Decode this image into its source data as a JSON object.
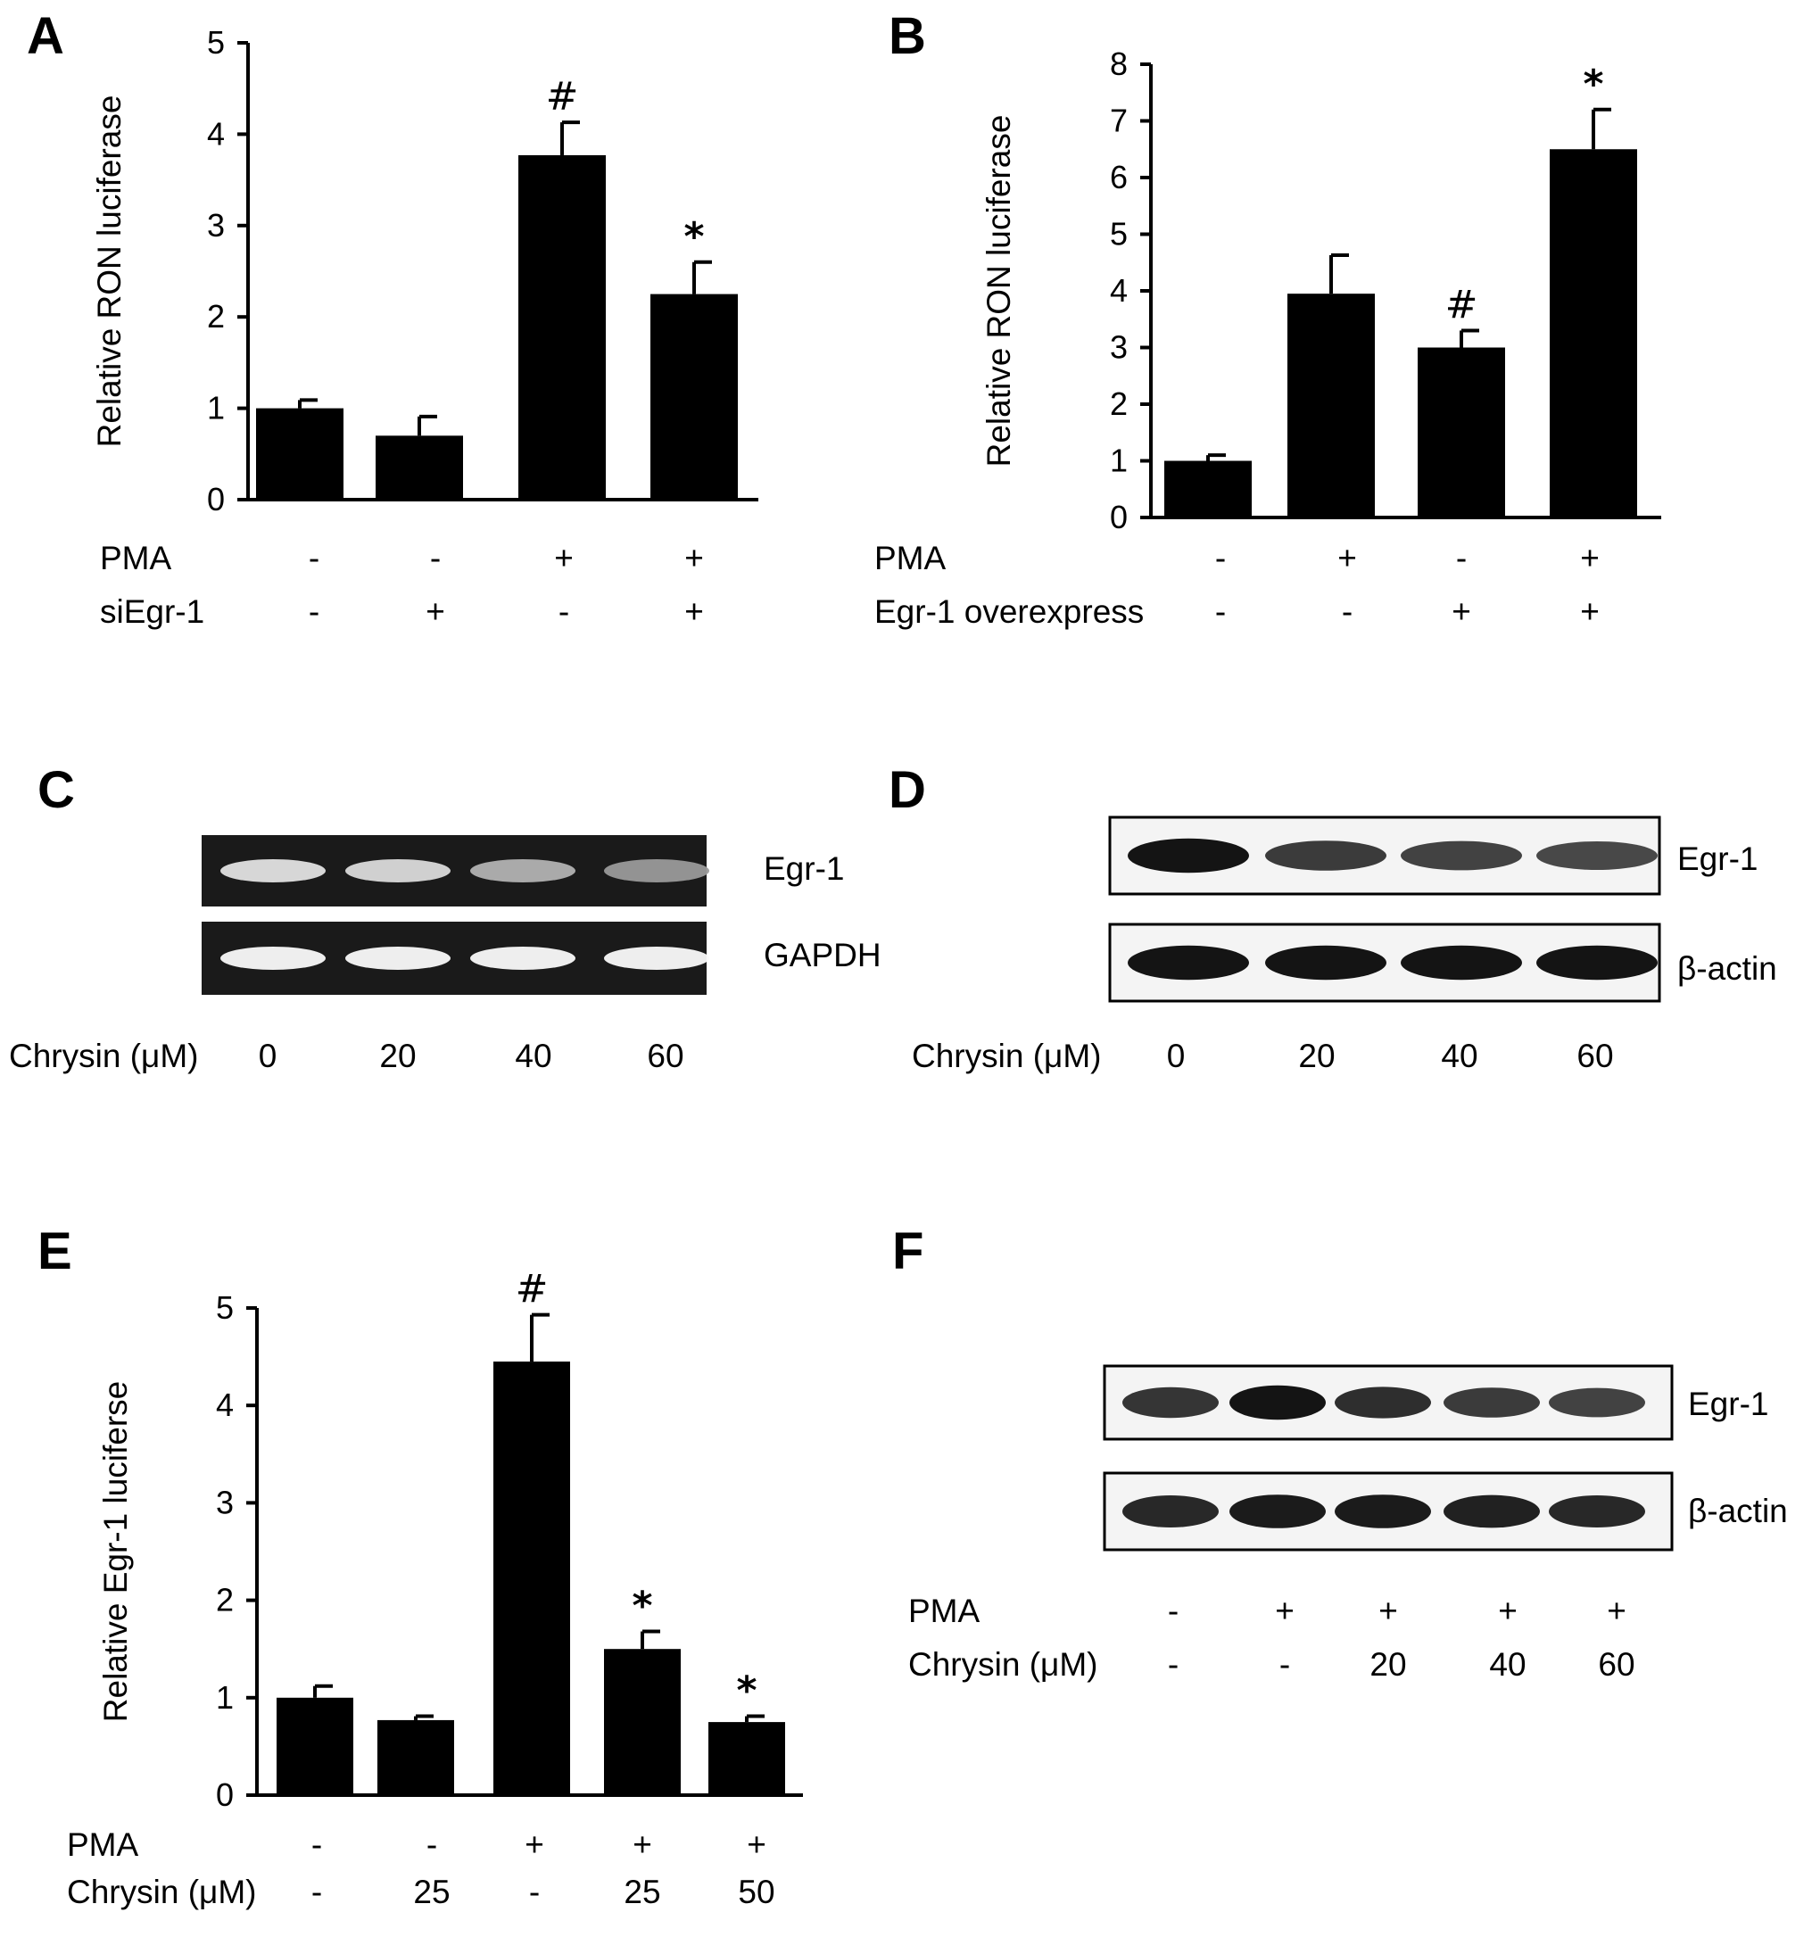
{
  "chart_data": [
    {
      "panel": "A",
      "type": "bar",
      "ylabel": "Relative RON luciferase",
      "ylim": [
        0,
        5
      ],
      "yticks": [
        "0",
        "1",
        "2",
        "3",
        "4",
        "5"
      ],
      "values": [
        1.0,
        0.7,
        3.77,
        2.25
      ],
      "errors": [
        0.09,
        0.21,
        0.36,
        0.35
      ],
      "annotations": [
        "",
        "",
        "#",
        "*"
      ],
      "conditions": [
        {
          "label": "PMA",
          "marks": [
            "-",
            "-",
            "+",
            "+"
          ]
        },
        {
          "label": "siEgr-1",
          "marks": [
            "-",
            "+",
            "-",
            "+"
          ]
        }
      ]
    },
    {
      "panel": "B",
      "type": "bar",
      "ylabel": "Relative RON luciferase",
      "ylim": [
        0,
        8
      ],
      "yticks": [
        "0",
        "1",
        "2",
        "3",
        "4",
        "5",
        "6",
        "7",
        "8"
      ],
      "values": [
        1.0,
        3.95,
        3.0,
        6.5
      ],
      "errors": [
        0.1,
        0.68,
        0.3,
        0.7
      ],
      "annotations": [
        "",
        "",
        "#",
        "*"
      ],
      "conditions": [
        {
          "label": "PMA",
          "marks": [
            "-",
            "+",
            "-",
            "+"
          ]
        },
        {
          "label": "Egr-1 overexpress",
          "marks": [
            "-",
            "-",
            "+",
            "+"
          ]
        }
      ]
    },
    {
      "panel": "E",
      "type": "bar",
      "ylabel": "Relative Egr-1 luciferse",
      "ylim": [
        0,
        5
      ],
      "yticks": [
        "0",
        "1",
        "2",
        "3",
        "4",
        "5"
      ],
      "values": [
        1.0,
        0.77,
        4.45,
        1.5,
        0.75
      ],
      "errors": [
        0.12,
        0.04,
        0.48,
        0.18,
        0.06
      ],
      "annotations": [
        "",
        "",
        "#",
        "*",
        "*"
      ],
      "conditions": [
        {
          "label": "PMA",
          "marks": [
            "-",
            "-",
            "+",
            "+",
            "+"
          ]
        },
        {
          "label": "Chrysin (μM)",
          "marks": [
            "-",
            "25",
            "-",
            "25",
            "50"
          ]
        }
      ]
    }
  ],
  "blots": [
    {
      "panel": "C",
      "style": "gel",
      "bands": [
        "Egr-1",
        "GAPDH"
      ],
      "intensity": [
        [
          0.85,
          0.8,
          0.55,
          0.4
        ],
        [
          1.0,
          1.0,
          1.0,
          1.0
        ]
      ],
      "lane_title": "Chrysin (μM)",
      "lanes": [
        "0",
        "20",
        "40",
        "60"
      ]
    },
    {
      "panel": "D",
      "style": "western",
      "bands": [
        "Egr-1",
        "β-actin"
      ],
      "intensity": [
        [
          1.0,
          0.7,
          0.65,
          0.6
        ],
        [
          1.0,
          1.0,
          1.0,
          1.0
        ]
      ],
      "lane_title": "Chrysin (μM)",
      "lanes": [
        "0",
        "20",
        "40",
        "60"
      ]
    },
    {
      "panel": "F",
      "style": "western",
      "bands": [
        "Egr-1",
        "β-actin"
      ],
      "intensity": [
        [
          0.75,
          1.0,
          0.8,
          0.7,
          0.65
        ],
        [
          0.85,
          0.95,
          0.95,
          0.9,
          0.85
        ]
      ],
      "conditions": [
        {
          "label": "PMA",
          "marks": [
            "-",
            "+",
            "+",
            "+",
            "+"
          ]
        },
        {
          "label": "Chrysin (μM)",
          "marks": [
            "-",
            "-",
            "20",
            "40",
            "60"
          ]
        }
      ]
    }
  ]
}
